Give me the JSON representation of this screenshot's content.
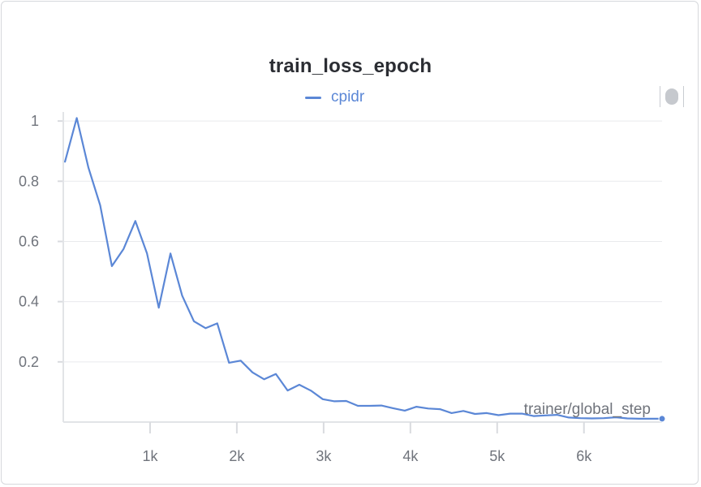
{
  "chart_data": {
    "type": "line",
    "title": "train_loss_epoch",
    "xlabel": "trainer/global_step",
    "ylabel": "",
    "xlim": [
      0,
      6900
    ],
    "ylim": [
      0,
      1.03
    ],
    "x_ticks": [
      1000,
      2000,
      3000,
      4000,
      5000,
      6000
    ],
    "x_tick_labels": [
      "1k",
      "2k",
      "3k",
      "4k",
      "5k",
      "6k"
    ],
    "y_ticks": [
      0.2,
      0.4,
      0.6,
      0.8,
      1
    ],
    "y_tick_labels": [
      "0.2",
      "0.4",
      "0.6",
      "0.8",
      "1"
    ],
    "grid": true,
    "legend": "top-center",
    "series": [
      {
        "name": "cpidr",
        "color": "#5b87d6",
        "x": [
          20,
          155,
          290,
          425,
          560,
          695,
          830,
          965,
          1100,
          1235,
          1370,
          1505,
          1640,
          1775,
          1910,
          2045,
          2180,
          2315,
          2450,
          2585,
          2720,
          2855,
          2990,
          3125,
          3260,
          3395,
          3530,
          3665,
          3800,
          3935,
          4070,
          4205,
          4340,
          4475,
          4610,
          4745,
          4880,
          5015,
          5150,
          5285,
          5420,
          5555,
          5690,
          5825,
          5960,
          6095,
          6230,
          6365,
          6500,
          6635,
          6770,
          6900
        ],
        "y": [
          0.865,
          1.01,
          0.845,
          0.72,
          0.518,
          0.575,
          0.668,
          0.56,
          0.38,
          0.56,
          0.42,
          0.335,
          0.312,
          0.328,
          0.197,
          0.204,
          0.165,
          0.142,
          0.16,
          0.105,
          0.124,
          0.104,
          0.076,
          0.069,
          0.07,
          0.054,
          0.054,
          0.055,
          0.046,
          0.038,
          0.051,
          0.045,
          0.043,
          0.03,
          0.037,
          0.027,
          0.03,
          0.023,
          0.028,
          0.028,
          0.02,
          0.022,
          0.024,
          0.015,
          0.013,
          0.012,
          0.013,
          0.016,
          0.012,
          0.011,
          0.011,
          0.011
        ]
      }
    ]
  },
  "controls": {
    "legend_toggle_icon": "toggle-pill-icon"
  }
}
